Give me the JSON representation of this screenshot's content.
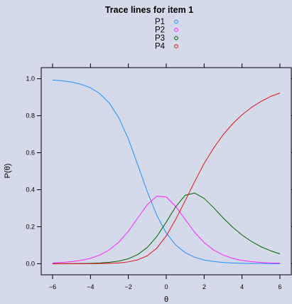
{
  "chart_data": {
    "type": "line",
    "title": "Trace lines for item 1",
    "xlabel": "θ",
    "ylabel": "P(θ)",
    "xlim": [
      -6.6,
      6.6
    ],
    "ylim": [
      -0.06,
      1.06
    ],
    "xticks": [
      -6,
      -4,
      -2,
      0,
      2,
      4,
      6
    ],
    "xtick_labels": [
      "−6",
      "−4",
      "−2",
      "0",
      "2",
      "4",
      "6"
    ],
    "yticks": [
      0.0,
      0.2,
      0.4,
      0.6,
      0.8,
      1.0
    ],
    "ytick_labels": [
      "0.0",
      "0.2",
      "0.4",
      "0.6",
      "0.8",
      "1.0"
    ],
    "grid": false,
    "legend": "top",
    "x": [
      -6,
      -5.5,
      -5,
      -4.5,
      -4,
      -3.5,
      -3,
      -2.5,
      -2,
      -1.5,
      -1,
      -0.5,
      0,
      0.5,
      1,
      1.5,
      2,
      2.5,
      3,
      3.5,
      4,
      4.5,
      5,
      5.5,
      6
    ],
    "series": [
      {
        "name": "P1",
        "color": "#1F8FFF",
        "values": [
          0.993,
          0.989,
          0.982,
          0.97,
          0.951,
          0.919,
          0.868,
          0.788,
          0.674,
          0.534,
          0.389,
          0.262,
          0.166,
          0.101,
          0.06,
          0.035,
          0.02,
          0.012,
          0.007,
          0.004,
          0.002,
          0.001,
          0.001,
          0.0,
          0.0
        ]
      },
      {
        "name": "P2",
        "color": "#FF22FF",
        "values": [
          0.004,
          0.007,
          0.011,
          0.018,
          0.029,
          0.047,
          0.075,
          0.117,
          0.175,
          0.248,
          0.319,
          0.365,
          0.361,
          0.31,
          0.239,
          0.17,
          0.114,
          0.074,
          0.047,
          0.029,
          0.018,
          0.011,
          0.007,
          0.004,
          0.003
        ]
      },
      {
        "name": "P3",
        "color": "#006400",
        "values": [
          0.0,
          0.0,
          0.0,
          0.001,
          0.002,
          0.004,
          0.008,
          0.014,
          0.027,
          0.05,
          0.088,
          0.147,
          0.225,
          0.308,
          0.37,
          0.382,
          0.353,
          0.303,
          0.248,
          0.198,
          0.155,
          0.12,
          0.092,
          0.07,
          0.053
        ]
      },
      {
        "name": "P4",
        "color": "#E0101A",
        "values": [
          0.0,
          0.0,
          0.0,
          0.0,
          0.0,
          0.001,
          0.002,
          0.004,
          0.01,
          0.021,
          0.043,
          0.084,
          0.15,
          0.24,
          0.341,
          0.444,
          0.542,
          0.625,
          0.697,
          0.756,
          0.805,
          0.845,
          0.877,
          0.904,
          0.923
        ]
      }
    ]
  }
}
